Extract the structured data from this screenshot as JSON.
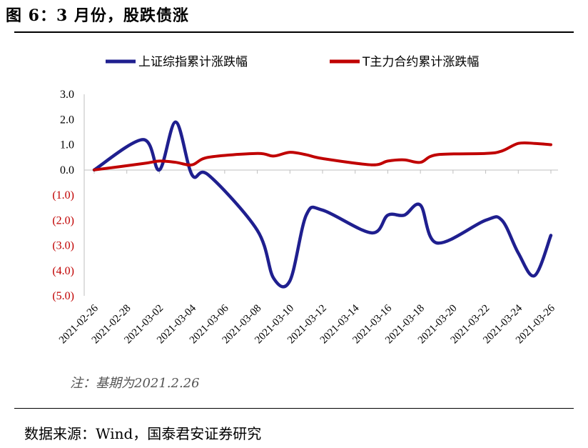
{
  "figure": {
    "title": "图 6：3 月份，股跌债涨",
    "note": "注：基期为2021.2.26",
    "source": "数据来源：Wind，国泰君安证券研究"
  },
  "colors": {
    "series_1": "#1f1f8f",
    "series_2": "#c00000",
    "negative_tick": "#c00000",
    "axis": "#bfbfbf"
  },
  "chart_data": {
    "type": "line",
    "title": "",
    "xlabel": "",
    "ylabel": "",
    "ylim": [
      -5.0,
      3.0
    ],
    "y_ticks": [
      {
        "value": 3,
        "label": "3.0"
      },
      {
        "value": 2,
        "label": "2.0"
      },
      {
        "value": 1,
        "label": "1.0"
      },
      {
        "value": 0,
        "label": "0.0"
      },
      {
        "value": -1,
        "label": "(1.0)"
      },
      {
        "value": -2,
        "label": "(2.0)"
      },
      {
        "value": -3,
        "label": "(3.0)"
      },
      {
        "value": -4,
        "label": "(4.0)"
      },
      {
        "value": -5,
        "label": "(5.0)"
      }
    ],
    "x_ticks": [
      "2021-02-26",
      "2021-02-28",
      "2021-03-02",
      "2021-03-04",
      "2021-03-06",
      "2021-03-08",
      "2021-03-10",
      "2021-03-12",
      "2021-03-14",
      "2021-03-16",
      "2021-03-18",
      "2021-03-20",
      "2021-03-22",
      "2021-03-24",
      "2021-03-26"
    ],
    "legend_position": "top",
    "grid": false,
    "series": [
      {
        "name": "上证综指累计涨跌幅",
        "points": [
          [
            "2021-02-26",
            0.0
          ],
          [
            "2021-03-01",
            1.2
          ],
          [
            "2021-03-02",
            0.0
          ],
          [
            "2021-03-03",
            1.9
          ],
          [
            "2021-03-04",
            -0.2
          ],
          [
            "2021-03-05",
            -0.2
          ],
          [
            "2021-03-08",
            -2.4
          ],
          [
            "2021-03-09",
            -4.3
          ],
          [
            "2021-03-10",
            -4.4
          ],
          [
            "2021-03-11",
            -1.8
          ],
          [
            "2021-03-12",
            -1.6
          ],
          [
            "2021-03-15",
            -2.5
          ],
          [
            "2021-03-16",
            -1.8
          ],
          [
            "2021-03-17",
            -1.8
          ],
          [
            "2021-03-18",
            -1.4
          ],
          [
            "2021-03-19",
            -2.9
          ],
          [
            "2021-03-22",
            -2.0
          ],
          [
            "2021-03-23",
            -2.0
          ],
          [
            "2021-03-24",
            -3.3
          ],
          [
            "2021-03-25",
            -4.2
          ],
          [
            "2021-03-26",
            -2.6
          ]
        ]
      },
      {
        "name": "T主力合约累计涨跌幅",
        "points": [
          [
            "2021-02-26",
            0.0
          ],
          [
            "2021-03-01",
            0.25
          ],
          [
            "2021-03-02",
            0.35
          ],
          [
            "2021-03-03",
            0.3
          ],
          [
            "2021-03-04",
            0.2
          ],
          [
            "2021-03-05",
            0.5
          ],
          [
            "2021-03-08",
            0.65
          ],
          [
            "2021-03-09",
            0.55
          ],
          [
            "2021-03-10",
            0.7
          ],
          [
            "2021-03-11",
            0.6
          ],
          [
            "2021-03-12",
            0.45
          ],
          [
            "2021-03-15",
            0.2
          ],
          [
            "2021-03-16",
            0.35
          ],
          [
            "2021-03-17",
            0.4
          ],
          [
            "2021-03-18",
            0.3
          ],
          [
            "2021-03-19",
            0.6
          ],
          [
            "2021-03-22",
            0.65
          ],
          [
            "2021-03-23",
            0.75
          ],
          [
            "2021-03-24",
            1.05
          ],
          [
            "2021-03-25",
            1.05
          ],
          [
            "2021-03-26",
            1.0
          ]
        ]
      }
    ]
  }
}
